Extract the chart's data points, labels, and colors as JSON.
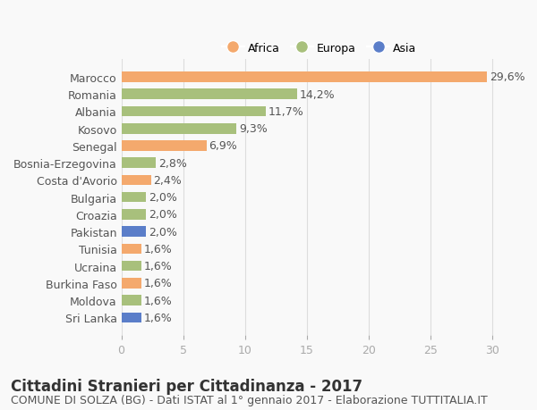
{
  "countries": [
    "Marocco",
    "Romania",
    "Albania",
    "Kosovo",
    "Senegal",
    "Bosnia-Erzegovina",
    "Costa d'Avorio",
    "Bulgaria",
    "Croazia",
    "Pakistan",
    "Tunisia",
    "Ucraina",
    "Burkina Faso",
    "Moldova",
    "Sri Lanka"
  ],
  "values": [
    29.6,
    14.2,
    11.7,
    9.3,
    6.9,
    2.8,
    2.4,
    2.0,
    2.0,
    2.0,
    1.6,
    1.6,
    1.6,
    1.6,
    1.6
  ],
  "labels": [
    "29,6%",
    "14,2%",
    "11,7%",
    "9,3%",
    "6,9%",
    "2,8%",
    "2,4%",
    "2,0%",
    "2,0%",
    "2,0%",
    "1,6%",
    "1,6%",
    "1,6%",
    "1,6%",
    "1,6%"
  ],
  "continents": [
    "Africa",
    "Europa",
    "Europa",
    "Europa",
    "Africa",
    "Europa",
    "Africa",
    "Europa",
    "Europa",
    "Asia",
    "Africa",
    "Europa",
    "Africa",
    "Europa",
    "Asia"
  ],
  "continent_colors": {
    "Africa": "#F4A96D",
    "Europa": "#A8C07C",
    "Asia": "#5B7EC9"
  },
  "legend_items": [
    "Africa",
    "Europa",
    "Asia"
  ],
  "legend_colors": [
    "#F4A96D",
    "#A8C07C",
    "#5B7EC9"
  ],
  "xlim": [
    0,
    32
  ],
  "xticks": [
    0,
    5,
    10,
    15,
    20,
    25,
    30
  ],
  "title": "Cittadini Stranieri per Cittadinanza - 2017",
  "subtitle": "COMUNE DI SOLZA (BG) - Dati ISTAT al 1° gennaio 2017 - Elaborazione TUTTITALIA.IT",
  "background_color": "#f9f9f9",
  "bar_height": 0.6,
  "label_fontsize": 9,
  "title_fontsize": 12,
  "subtitle_fontsize": 9
}
